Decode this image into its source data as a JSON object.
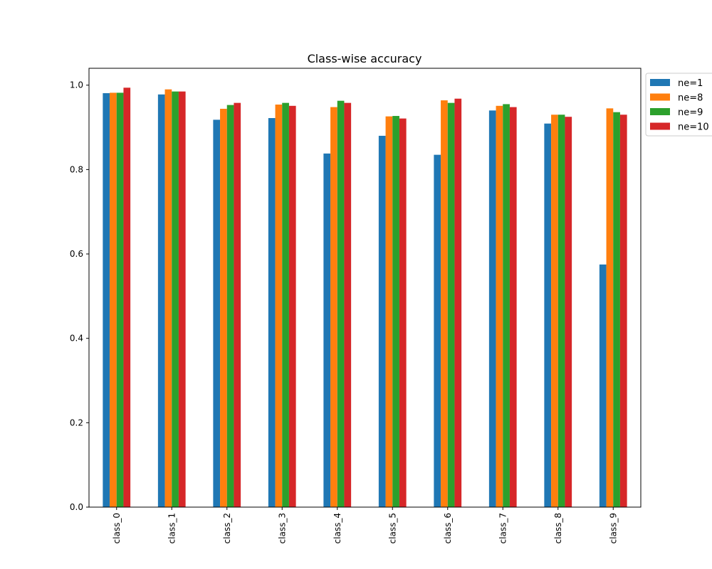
{
  "chart_data": {
    "type": "bar",
    "title": "Class-wise accuracy",
    "xlabel": "",
    "ylabel": "",
    "ylim": [
      0,
      1.04
    ],
    "yticks": [
      0.0,
      0.2,
      0.4,
      0.6,
      0.8,
      1.0
    ],
    "ytick_labels": [
      "0.0",
      "0.2",
      "0.4",
      "0.6",
      "0.8",
      "1.0"
    ],
    "categories": [
      "class_0",
      "class_1",
      "class_2",
      "class_3",
      "class_4",
      "class_5",
      "class_6",
      "class_7",
      "class_8",
      "class_9"
    ],
    "series": [
      {
        "name": "ne=1",
        "color": "#1f77b4",
        "values": [
          0.981,
          0.978,
          0.918,
          0.922,
          0.838,
          0.88,
          0.835,
          0.94,
          0.909,
          0.575
        ]
      },
      {
        "name": "ne=8",
        "color": "#ff7f0e",
        "values": [
          0.982,
          0.99,
          0.944,
          0.954,
          0.948,
          0.926,
          0.964,
          0.951,
          0.93,
          0.945
        ]
      },
      {
        "name": "ne=9",
        "color": "#2ca02c",
        "values": [
          0.982,
          0.985,
          0.953,
          0.958,
          0.963,
          0.927,
          0.958,
          0.955,
          0.93,
          0.936
        ]
      },
      {
        "name": "ne=10",
        "color": "#d62728",
        "values": [
          0.994,
          0.985,
          0.958,
          0.951,
          0.958,
          0.921,
          0.968,
          0.948,
          0.925,
          0.93
        ]
      }
    ],
    "grid": false,
    "legend_position": "outside-top-right"
  }
}
